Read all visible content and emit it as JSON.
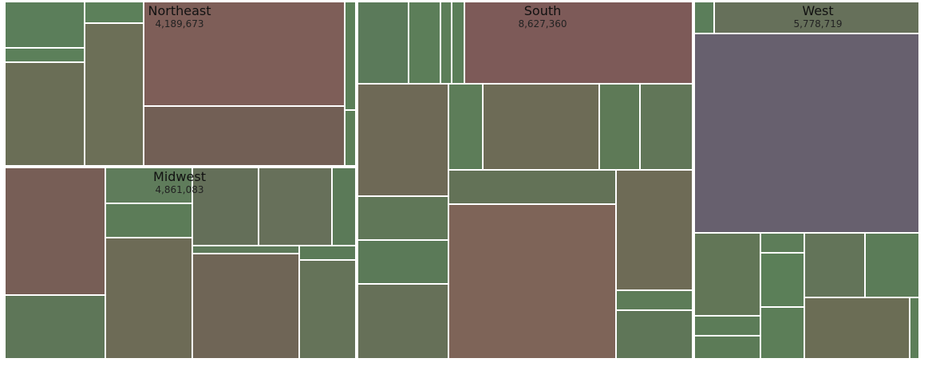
{
  "chart_data": {
    "type": "treemap",
    "regions": [
      {
        "name": "Northeast",
        "value": "4,189,673"
      },
      {
        "name": "Midwest",
        "value": "4,861,083"
      },
      {
        "name": "South",
        "value": "8,627,360"
      },
      {
        "name": "West",
        "value": "5,778,719"
      }
    ]
  }
}
